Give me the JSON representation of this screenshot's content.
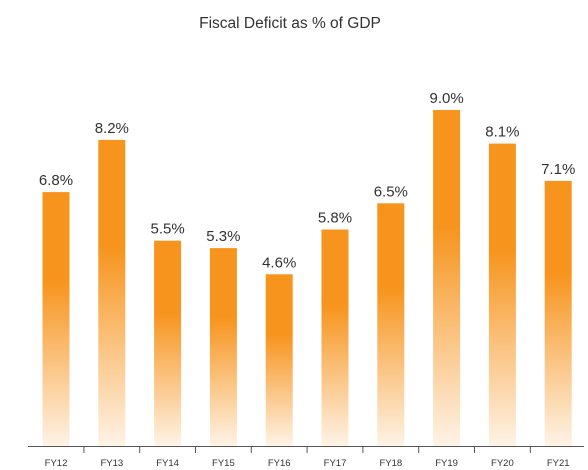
{
  "chart_data": {
    "type": "bar",
    "title": "Fiscal Deficit as % of GDP",
    "categories": [
      "FY12",
      "FY13",
      "FY14",
      "FY15",
      "FY16",
      "FY17",
      "FY18",
      "FY19",
      "FY20",
      "FY21"
    ],
    "values": [
      6.8,
      8.2,
      5.5,
      5.3,
      4.6,
      5.8,
      6.5,
      9.0,
      8.1,
      7.1
    ],
    "value_labels": [
      "6.8%",
      "8.2%",
      "5.5%",
      "5.3%",
      "4.6%",
      "5.8%",
      "6.5%",
      "9.0%",
      "8.1%",
      "7.1%"
    ],
    "xlabel": "",
    "ylabel": "",
    "ylim": [
      0,
      9.0
    ],
    "grid": false,
    "legend": "none",
    "colors": {
      "bar_top": "#f7941d",
      "bar_bottom": "#fef3e6",
      "text": "#333333",
      "axis": "#555555"
    }
  }
}
